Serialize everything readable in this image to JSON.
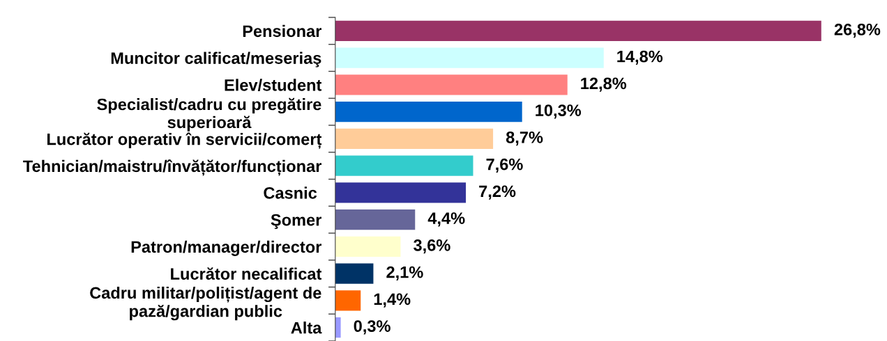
{
  "chart_data": {
    "type": "bar",
    "orientation": "horizontal",
    "tick_labels": "y",
    "categories": [
      "Pensionar",
      "Muncitor calificat/meseriaş",
      "Elev/student",
      "Specialist/cadru cu pregătire\nsuperioară",
      "Lucrător operativ în servicii/comerț",
      "Tehnician/maistru/învățător/funcționar",
      "Casnic ",
      "Şomer",
      "Patron/manager/director",
      "Lucrător necalificat",
      "Cadru militar/polițist/agent de\npază/gardian public",
      "Alta"
    ],
    "values": [
      26.8,
      14.8,
      12.8,
      10.3,
      8.7,
      7.6,
      7.2,
      4.4,
      3.6,
      2.1,
      1.4,
      0.3
    ],
    "value_labels": [
      "26,8%",
      "14,8%",
      "12,8%",
      "10,3%",
      "8,7%",
      "7,6%",
      "7,2%",
      "4,4%",
      "3,6%",
      "2,1%",
      "1,4%",
      "0,3%"
    ],
    "colors": [
      "#993366",
      "#ccffff",
      "#ff8080",
      "#0066cc",
      "#ffcc99",
      "#33cccc",
      "#333399",
      "#666699",
      "#ffffcc",
      "#003366",
      "#ff6600",
      "#9999ff"
    ]
  }
}
